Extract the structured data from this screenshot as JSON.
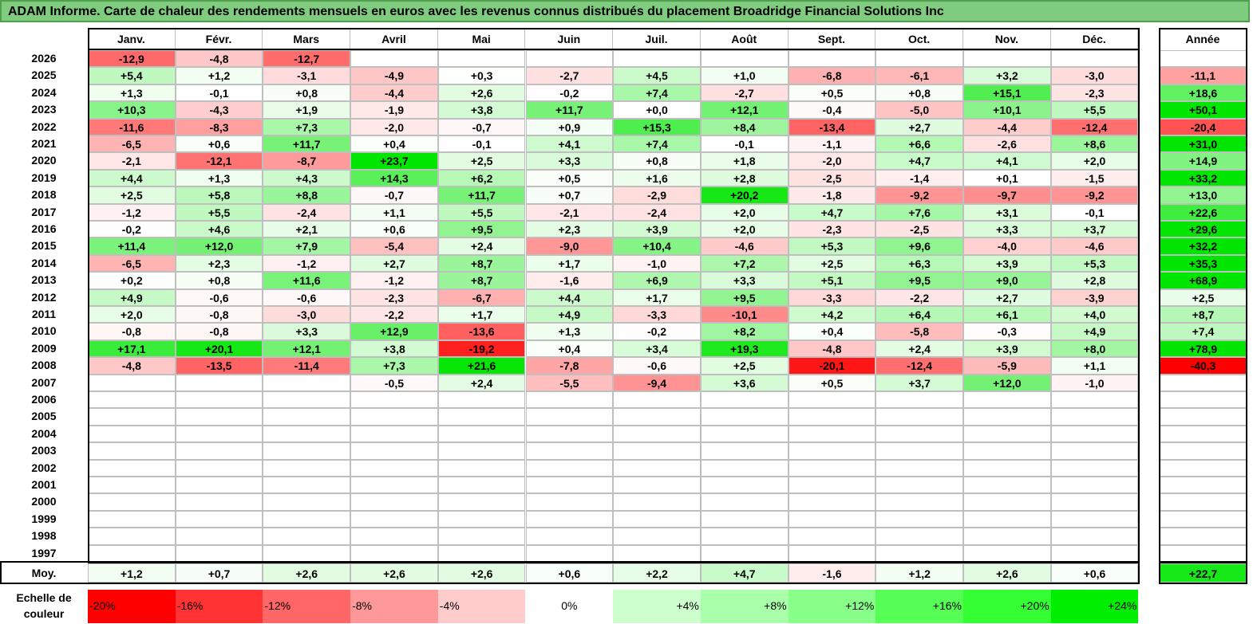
{
  "title": "ADAM Informe. Carte de chaleur des rendements mensuels en euros avec les revenus connus distribués du placement Broadridge Financial Solutions Inc",
  "chart_data": {
    "type": "heatmap",
    "months": [
      "Janv.",
      "Févr.",
      "Mars",
      "Avril",
      "Mai",
      "Juin",
      "Juil.",
      "Août",
      "Sept.",
      "Oct.",
      "Nov.",
      "Déc."
    ],
    "year_header": "Année",
    "rows": [
      {
        "year": "2026",
        "months": [
          "-12,9",
          "-4,8",
          "-12,7",
          "",
          "",
          "",
          "",
          "",
          "",
          "",
          "",
          ""
        ],
        "annual": ""
      },
      {
        "year": "2025",
        "months": [
          "+5,4",
          "+1,2",
          "-3,1",
          "-4,9",
          "+0,3",
          "-2,7",
          "+4,5",
          "+1,0",
          "-6,8",
          "-6,1",
          "+3,2",
          "-3,0"
        ],
        "annual": "-11,1"
      },
      {
        "year": "2024",
        "months": [
          "+1,3",
          "-0,1",
          "+0,8",
          "-4,4",
          "+2,6",
          "-0,2",
          "+7,4",
          "-2,7",
          "+0,5",
          "+0,8",
          "+15,1",
          "-2,3"
        ],
        "annual": "+18,6"
      },
      {
        "year": "2023",
        "months": [
          "+10,3",
          "-4,3",
          "+1,9",
          "-1,9",
          "+3,8",
          "+11,7",
          "+0,0",
          "+12,1",
          "-0,4",
          "-5,0",
          "+10,1",
          "+5,5"
        ],
        "annual": "+50,1"
      },
      {
        "year": "2022",
        "months": [
          "-11,6",
          "-8,3",
          "+7,3",
          "-2,0",
          "-0,7",
          "+0,9",
          "+15,3",
          "+8,4",
          "-13,4",
          "+2,7",
          "-4,4",
          "-12,4"
        ],
        "annual": "-20,4"
      },
      {
        "year": "2021",
        "months": [
          "-6,5",
          "+0,6",
          "+11,7",
          "+0,4",
          "-0,1",
          "+4,1",
          "+7,4",
          "-0,1",
          "-1,1",
          "+6,6",
          "-2,6",
          "+8,6"
        ],
        "annual": "+31,0"
      },
      {
        "year": "2020",
        "months": [
          "-2,1",
          "-12,1",
          "-8,7",
          "+23,7",
          "+2,5",
          "+3,3",
          "+0,8",
          "+1,8",
          "-2,0",
          "+4,7",
          "+4,1",
          "+2,0"
        ],
        "annual": "+14,9"
      },
      {
        "year": "2019",
        "months": [
          "+4,4",
          "+1,3",
          "+4,3",
          "+14,3",
          "+6,2",
          "+0,5",
          "+1,6",
          "+2,8",
          "-2,5",
          "-1,4",
          "+0,1",
          "-1,5"
        ],
        "annual": "+33,2"
      },
      {
        "year": "2018",
        "months": [
          "+2,5",
          "+5,8",
          "+8,8",
          "-0,7",
          "+11,7",
          "+0,7",
          "-2,9",
          "+20,2",
          "-1,8",
          "-9,2",
          "-9,7",
          "-9,2"
        ],
        "annual": "+13,0"
      },
      {
        "year": "2017",
        "months": [
          "-1,2",
          "+5,5",
          "-2,4",
          "+1,1",
          "+5,5",
          "-2,1",
          "-2,4",
          "+2,0",
          "+4,7",
          "+7,6",
          "+3,1",
          "-0,1"
        ],
        "annual": "+22,6"
      },
      {
        "year": "2016",
        "months": [
          "-0,2",
          "+4,6",
          "+2,1",
          "+0,6",
          "+9,5",
          "+2,3",
          "+3,9",
          "+2,0",
          "-2,3",
          "-2,5",
          "+3,3",
          "+3,7"
        ],
        "annual": "+29,6"
      },
      {
        "year": "2015",
        "months": [
          "+11,4",
          "+12,0",
          "+7,9",
          "-5,4",
          "+2,4",
          "-9,0",
          "+10,4",
          "-4,6",
          "+5,3",
          "+9,6",
          "-4,0",
          "-4,6"
        ],
        "annual": "+32,2"
      },
      {
        "year": "2014",
        "months": [
          "-6,5",
          "+2,3",
          "-1,2",
          "+2,7",
          "+8,7",
          "+1,7",
          "-1,0",
          "+7,2",
          "+2,5",
          "+6,3",
          "+3,9",
          "+5,3"
        ],
        "annual": "+35,3"
      },
      {
        "year": "2013",
        "months": [
          "+0,2",
          "+0,8",
          "+11,6",
          "-1,2",
          "+8,7",
          "-1,6",
          "+6,9",
          "+3,3",
          "+5,1",
          "+9,5",
          "+9,0",
          "+2,8"
        ],
        "annual": "+68,9"
      },
      {
        "year": "2012",
        "months": [
          "+4,9",
          "-0,6",
          "-0,6",
          "-2,3",
          "-6,7",
          "+4,4",
          "+1,7",
          "+9,5",
          "-3,3",
          "-2,2",
          "+2,7",
          "-3,9"
        ],
        "annual": "+2,5"
      },
      {
        "year": "2011",
        "months": [
          "+2,0",
          "-0,8",
          "-3,0",
          "-2,2",
          "+1,7",
          "+4,9",
          "-3,3",
          "-10,1",
          "+4,2",
          "+6,4",
          "+6,1",
          "+4,0"
        ],
        "annual": "+8,7"
      },
      {
        "year": "2010",
        "months": [
          "-0,8",
          "-0,8",
          "+3,3",
          "+12,9",
          "-13,6",
          "+1,3",
          "-0,2",
          "+8,2",
          "+0,4",
          "-5,8",
          "-0,3",
          "+4,9"
        ],
        "annual": "+7,4"
      },
      {
        "year": "2009",
        "months": [
          "+17,1",
          "+20,1",
          "+12,1",
          "+3,8",
          "-19,2",
          "+0,4",
          "+3,4",
          "+19,3",
          "-4,8",
          "+2,4",
          "+3,9",
          "+8,0"
        ],
        "annual": "+78,9"
      },
      {
        "year": "2008",
        "months": [
          "-4,8",
          "-13,5",
          "-11,4",
          "+7,3",
          "+21,6",
          "-7,8",
          "-0,6",
          "+2,5",
          "-20,1",
          "-12,4",
          "-5,9",
          "+1,1"
        ],
        "annual": "-40,3"
      },
      {
        "year": "2007",
        "months": [
          "",
          "",
          "",
          "-0,5",
          "+2,4",
          "-5,5",
          "-9,4",
          "+3,6",
          "+0,5",
          "+3,7",
          "+12,0",
          "-1,0"
        ],
        "annual": ""
      },
      {
        "year": "2006",
        "months": [
          "",
          "",
          "",
          "",
          "",
          "",
          "",
          "",
          "",
          "",
          "",
          ""
        ],
        "annual": ""
      },
      {
        "year": "2005",
        "months": [
          "",
          "",
          "",
          "",
          "",
          "",
          "",
          "",
          "",
          "",
          "",
          ""
        ],
        "annual": ""
      },
      {
        "year": "2004",
        "months": [
          "",
          "",
          "",
          "",
          "",
          "",
          "",
          "",
          "",
          "",
          "",
          ""
        ],
        "annual": ""
      },
      {
        "year": "2003",
        "months": [
          "",
          "",
          "",
          "",
          "",
          "",
          "",
          "",
          "",
          "",
          "",
          ""
        ],
        "annual": ""
      },
      {
        "year": "2002",
        "months": [
          "",
          "",
          "",
          "",
          "",
          "",
          "",
          "",
          "",
          "",
          "",
          ""
        ],
        "annual": ""
      },
      {
        "year": "2001",
        "months": [
          "",
          "",
          "",
          "",
          "",
          "",
          "",
          "",
          "",
          "",
          "",
          ""
        ],
        "annual": ""
      },
      {
        "year": "2000",
        "months": [
          "",
          "",
          "",
          "",
          "",
          "",
          "",
          "",
          "",
          "",
          "",
          ""
        ],
        "annual": ""
      },
      {
        "year": "1999",
        "months": [
          "",
          "",
          "",
          "",
          "",
          "",
          "",
          "",
          "",
          "",
          "",
          ""
        ],
        "annual": ""
      },
      {
        "year": "1998",
        "months": [
          "",
          "",
          "",
          "",
          "",
          "",
          "",
          "",
          "",
          "",
          "",
          ""
        ],
        "annual": ""
      },
      {
        "year": "1997",
        "months": [
          "",
          "",
          "",
          "",
          "",
          "",
          "",
          "",
          "",
          "",
          "",
          ""
        ],
        "annual": ""
      }
    ],
    "average": {
      "label": "Moy.",
      "months": [
        "+1,2",
        "+0,7",
        "+2,6",
        "+2,6",
        "+2,6",
        "+0,6",
        "+2,2",
        "+4,7",
        "-1,6",
        "+1,2",
        "+2,6",
        "+0,6"
      ],
      "annual": "+22,7"
    },
    "scale": {
      "label": "Echelle de couleur",
      "steps": [
        "-20%",
        "-16%",
        "-12%",
        "-8%",
        "-4%",
        "0%",
        "+4%",
        "+8%",
        "+12%",
        "+16%",
        "+20%",
        "+24%"
      ],
      "colors": [
        "#ff0000",
        "#ff3333",
        "#ff6666",
        "#ff9999",
        "#ffcccc",
        "#ffffff",
        "#ccffcc",
        "#aaffaa",
        "#88ff88",
        "#55ff55",
        "#33ff33",
        "#00ee00"
      ]
    },
    "colors": {
      "negative_max": "#ff0000",
      "positive_max": "#00e600",
      "neutral": "#ffffff",
      "title_bg": "#7fcc7f"
    }
  }
}
